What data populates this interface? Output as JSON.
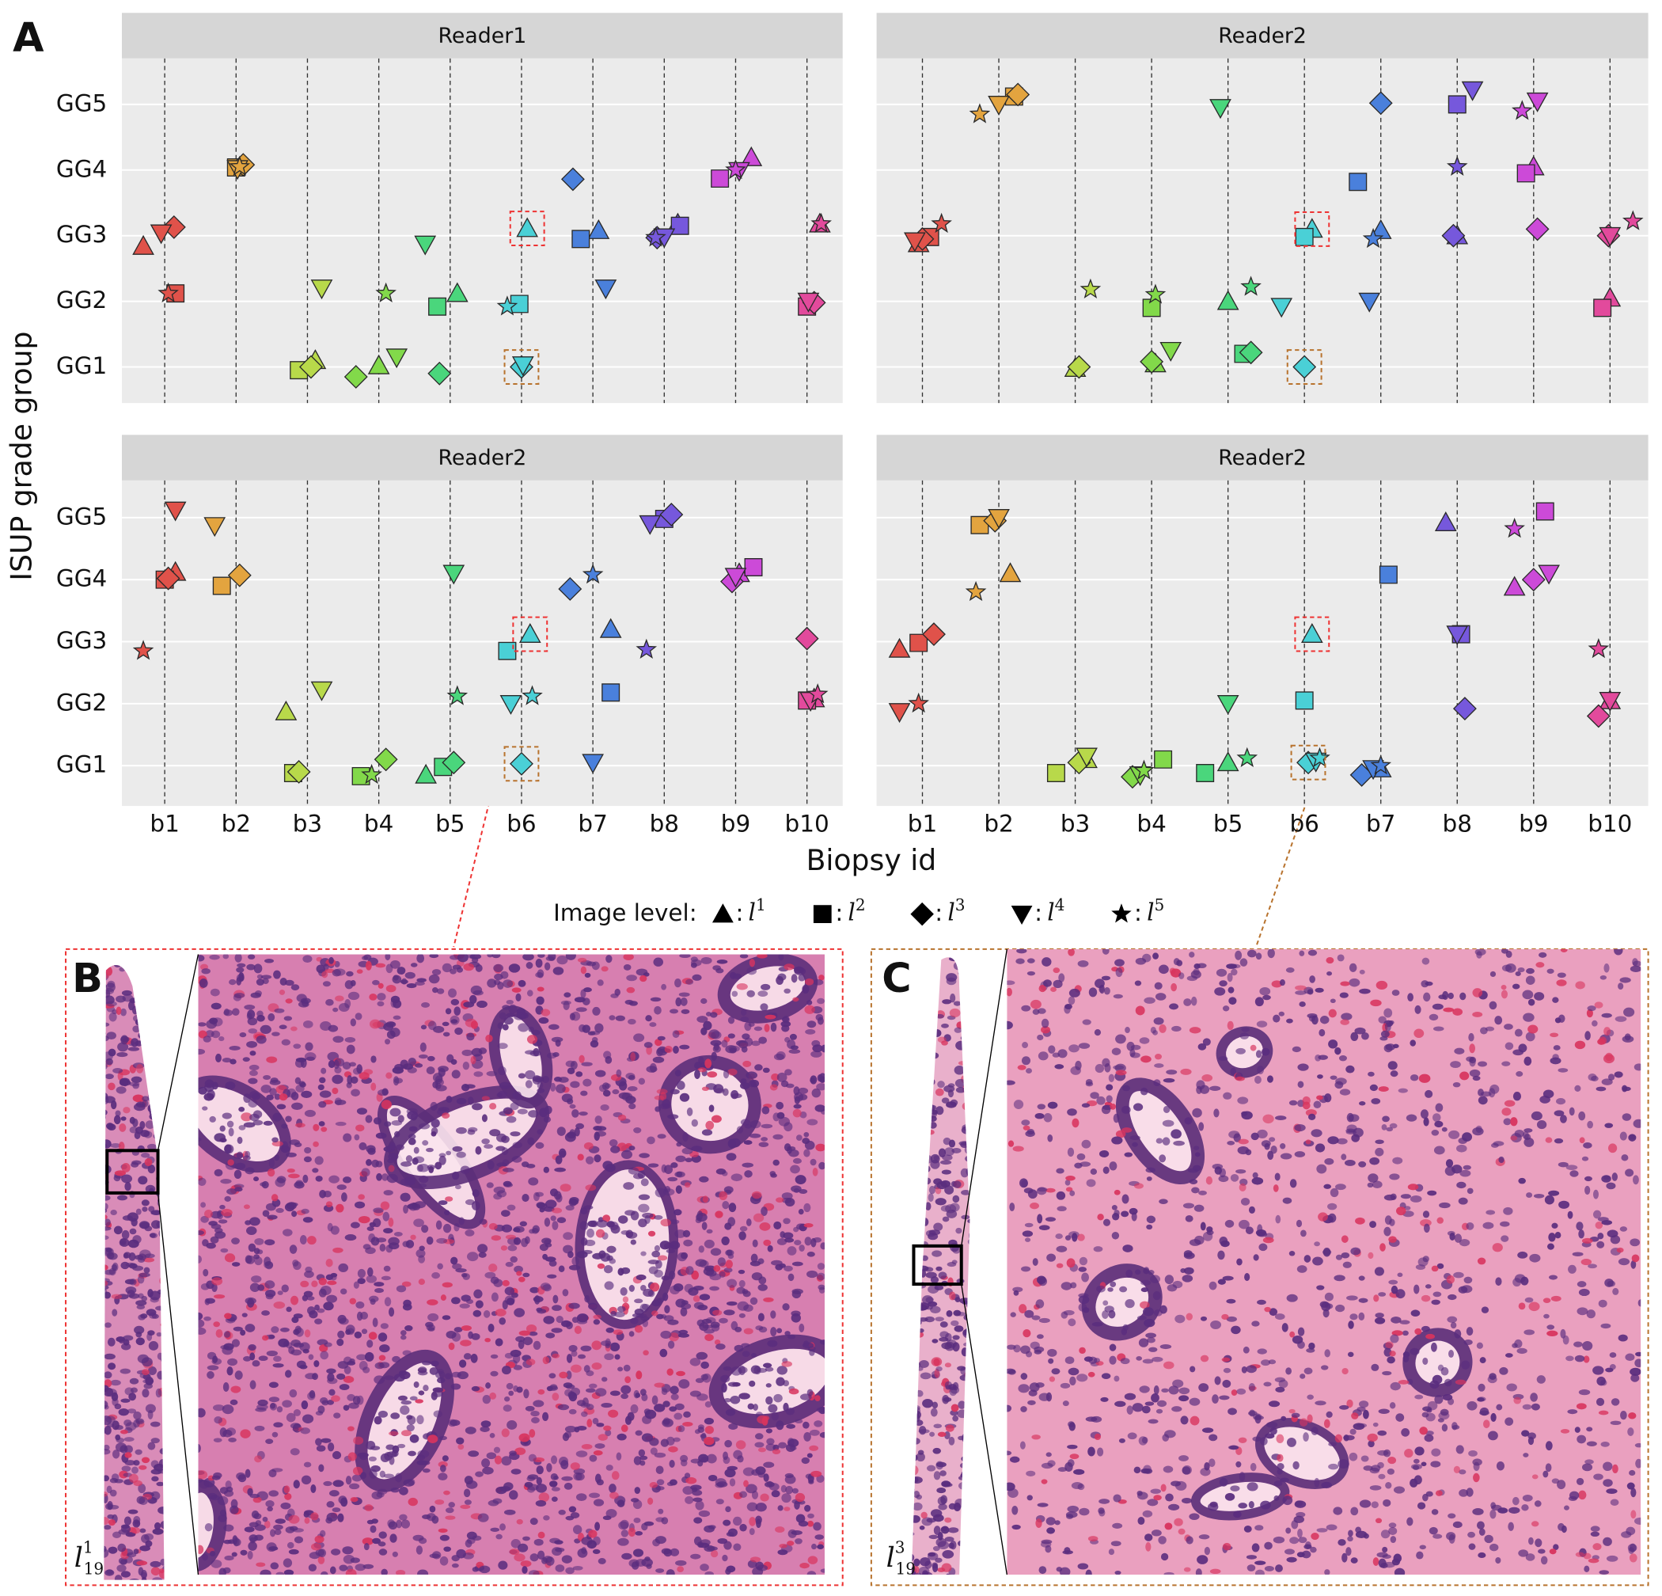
{
  "panel_labels": [
    "A",
    "B",
    "C"
  ],
  "y_axis_title": "ISUP grade group",
  "x_axis_title": "Biopsy id",
  "point_colors": [
    "#e0524a",
    "#e3a43f",
    "#b8d94a",
    "#82d94a",
    "#4ad67c",
    "#4ad0d6",
    "#4a80dc",
    "#7658dc",
    "#cc4ad8",
    "#e24a9c"
  ],
  "legend": {
    "title": "Image level:",
    "items": [
      {
        "marker": "triangle",
        "base": "l",
        "sup": "1"
      },
      {
        "marker": "square",
        "base": "l",
        "sup": "2"
      },
      {
        "marker": "diamond",
        "base": "l",
        "sup": "3"
      },
      {
        "marker": "triangle-down",
        "base": "l",
        "sup": "4"
      },
      {
        "marker": "star",
        "base": "l",
        "sup": "5"
      }
    ]
  },
  "image_labels": [
    {
      "base": "l",
      "sub": "19",
      "sup": "1"
    },
    {
      "base": "l",
      "sub": "19",
      "sup": "3"
    }
  ],
  "chart_data": [
    {
      "type": "scatter",
      "title": "Reader1",
      "xlim": [
        0.4,
        10.5
      ],
      "ylim": [
        0.45,
        5.7
      ],
      "xticks": [
        1,
        2,
        3,
        4,
        5,
        6,
        7,
        8,
        9,
        10
      ],
      "yticks": [
        {
          "value": 1,
          "label": "GG1"
        },
        {
          "value": 2,
          "label": "GG2"
        },
        {
          "value": 3,
          "label": "GG3"
        },
        {
          "value": 4,
          "label": "GG4"
        },
        {
          "value": 5,
          "label": "GG5"
        }
      ],
      "series": [
        {
          "marker": "triangle",
          "x": [
            0.7,
            3.11,
            4.0,
            5.1,
            6.08,
            7.08,
            8.19,
            9.22,
            10.18
          ],
          "values": [
            2.84,
            1.1,
            1.02,
            2.12,
            3.11,
            3.08,
            3.18,
            4.19,
            3.18
          ]
        },
        {
          "marker": "square",
          "x": [
            1.15,
            2.0,
            2.88,
            4.82,
            5.97,
            6.83,
            8.22,
            8.78,
            10.0
          ],
          "values": [
            2.12,
            4.04,
            0.95,
            1.92,
            1.96,
            2.95,
            3.15,
            3.87,
            1.92
          ]
        },
        {
          "marker": "diamond",
          "x": [
            1.13,
            2.1,
            3.05,
            3.68,
            4.85,
            6.0,
            6.72,
            7.9,
            10.1
          ],
          "values": [
            3.13,
            4.08,
            1.0,
            0.85,
            0.9,
            1.0,
            3.86,
            2.97,
            1.98
          ]
        },
        {
          "marker": "triangle-down",
          "x": [
            0.95,
            2.02,
            3.2,
            4.25,
            4.65,
            6.02,
            7.18,
            8.0,
            9.05,
            10.02
          ],
          "values": [
            3.04,
            4.02,
            2.2,
            1.15,
            2.87,
            1.03,
            2.2,
            2.98,
            3.99,
            2.0
          ]
        },
        {
          "marker": "star",
          "x": [
            1.05,
            2.05,
            4.1,
            5.8,
            7.88,
            9.0,
            10.2
          ],
          "values": [
            2.12,
            4.05,
            2.12,
            1.92,
            2.97,
            4.0,
            3.18
          ]
        }
      ]
    },
    {
      "type": "scatter",
      "title": "Reader2",
      "xlim": [
        0.4,
        10.5
      ],
      "ylim": [
        0.45,
        5.7
      ],
      "xticks": [
        1,
        2,
        3,
        4,
        5,
        6,
        7,
        8,
        9,
        10
      ],
      "yticks": [
        1,
        2,
        3,
        4,
        5
      ],
      "series": [
        {
          "marker": "triangle",
          "x": [
            0.95,
            3.0,
            4.05,
            5.0,
            6.1,
            7.0,
            8.0,
            9.0,
            10.0
          ],
          "values": [
            2.88,
            0.98,
            1.05,
            2.0,
            3.1,
            3.08,
            3.0,
            4.05,
            2.05
          ]
        },
        {
          "marker": "square",
          "x": [
            1.1,
            2.2,
            4.0,
            5.2,
            6.0,
            6.7,
            8.0,
            8.9,
            9.9
          ],
          "values": [
            2.98,
            5.12,
            1.9,
            1.2,
            2.98,
            3.82,
            5.0,
            3.95,
            1.9
          ]
        },
        {
          "marker": "diamond",
          "x": [
            1.0,
            2.25,
            3.05,
            4.0,
            5.3,
            6.0,
            7.0,
            7.95,
            9.05,
            9.98
          ],
          "values": [
            2.95,
            5.15,
            1.0,
            1.08,
            1.22,
            1.0,
            5.02,
            3.0,
            3.1,
            3.0
          ]
        },
        {
          "marker": "triangle-down",
          "x": [
            0.9,
            2.0,
            4.25,
            4.9,
            5.7,
            6.85,
            8.2,
            9.05,
            10.0
          ],
          "values": [
            2.92,
            5.0,
            1.25,
            4.95,
            1.92,
            2.0,
            5.22,
            5.05,
            3.0
          ]
        },
        {
          "marker": "star",
          "x": [
            1.25,
            1.75,
            3.2,
            4.05,
            5.3,
            6.9,
            8.0,
            8.85,
            10.3
          ],
          "values": [
            3.18,
            4.85,
            2.18,
            2.1,
            2.22,
            2.95,
            4.05,
            4.9,
            3.22
          ]
        }
      ]
    },
    {
      "type": "scatter",
      "title": "Reader2",
      "xlim": [
        0.4,
        10.5
      ],
      "ylim": [
        0.35,
        5.6
      ],
      "xticks": [
        {
          "value": 1,
          "label": "b1"
        },
        {
          "value": 2,
          "label": "b2"
        },
        {
          "value": 3,
          "label": "b3"
        },
        {
          "value": 4,
          "label": "b4"
        },
        {
          "value": 5,
          "label": "b5"
        },
        {
          "value": 6,
          "label": "b6"
        },
        {
          "value": 7,
          "label": "b7"
        },
        {
          "value": 8,
          "label": "b8"
        },
        {
          "value": 9,
          "label": "b9"
        },
        {
          "value": 10,
          "label": "b10"
        }
      ],
      "yticks": [
        {
          "value": 1,
          "label": "GG1"
        },
        {
          "value": 2,
          "label": "GG2"
        },
        {
          "value": 3,
          "label": "GG3"
        },
        {
          "value": 4,
          "label": "GG4"
        },
        {
          "value": 5,
          "label": "GG5"
        }
      ],
      "series": [
        {
          "marker": "triangle",
          "x": [
            1.15,
            2.7,
            4.66,
            6.12,
            7.25,
            9.05,
            10.1
          ],
          "values": [
            4.12,
            1.87,
            0.85,
            3.12,
            3.2,
            4.1,
            2.08
          ]
        },
        {
          "marker": "square",
          "x": [
            1.0,
            1.8,
            2.8,
            3.75,
            4.9,
            5.8,
            7.25,
            8.0,
            9.25,
            10.0
          ],
          "values": [
            4.0,
            3.9,
            0.88,
            0.83,
            0.98,
            2.85,
            2.18,
            4.98,
            4.2,
            2.05
          ]
        },
        {
          "marker": "diamond",
          "x": [
            1.05,
            2.05,
            2.88,
            4.1,
            5.05,
            6.0,
            6.68,
            8.1,
            8.95,
            10.0
          ],
          "values": [
            4.02,
            4.07,
            0.9,
            1.1,
            1.05,
            1.03,
            3.85,
            5.05,
            3.97,
            3.05
          ]
        },
        {
          "marker": "triangle-down",
          "x": [
            1.15,
            1.7,
            3.2,
            5.05,
            5.85,
            7.0,
            7.8,
            9.0,
            10.05
          ],
          "values": [
            5.12,
            4.87,
            2.22,
            4.1,
            2.0,
            1.05,
            4.9,
            4.05,
            2.05
          ]
        },
        {
          "marker": "star",
          "x": [
            0.7,
            3.9,
            5.1,
            6.15,
            7.0,
            7.75,
            10.15
          ],
          "values": [
            2.85,
            0.85,
            2.12,
            2.12,
            4.08,
            2.87,
            2.15
          ]
        }
      ]
    },
    {
      "type": "scatter",
      "title": "Reader2",
      "xlim": [
        0.4,
        10.5
      ],
      "ylim": [
        0.35,
        5.6
      ],
      "xticks": [
        {
          "value": 1,
          "label": "b1"
        },
        {
          "value": 2,
          "label": "b2"
        },
        {
          "value": 3,
          "label": "b3"
        },
        {
          "value": 4,
          "label": "b4"
        },
        {
          "value": 5,
          "label": "b5"
        },
        {
          "value": 6,
          "label": "b6"
        },
        {
          "value": 7,
          "label": "b7"
        },
        {
          "value": 8,
          "label": "b8"
        },
        {
          "value": 9,
          "label": "b9"
        },
        {
          "value": 10,
          "label": "b10"
        }
      ],
      "yticks": [
        1,
        2,
        3,
        4,
        5
      ],
      "series": [
        {
          "marker": "triangle",
          "x": [
            0.7,
            2.15,
            3.15,
            5.0,
            6.1,
            7.0,
            7.85,
            8.75,
            10.0
          ],
          "values": [
            2.88,
            4.1,
            1.1,
            1.05,
            3.12,
            0.95,
            4.92,
            3.88,
            2.05
          ]
        },
        {
          "marker": "square",
          "x": [
            0.95,
            1.75,
            2.75,
            4.15,
            4.7,
            6.0,
            7.1,
            8.05,
            9.15
          ],
          "values": [
            2.98,
            4.88,
            0.88,
            1.1,
            0.88,
            2.05,
            4.08,
            3.12,
            5.1
          ]
        },
        {
          "marker": "diamond",
          "x": [
            1.15,
            1.95,
            3.05,
            3.75,
            6.05,
            6.75,
            8.1,
            9.0,
            9.85
          ],
          "values": [
            3.12,
            4.95,
            1.05,
            0.82,
            1.05,
            0.85,
            1.92,
            4.0,
            1.8
          ]
        },
        {
          "marker": "triangle-down",
          "x": [
            0.7,
            2.0,
            3.15,
            3.85,
            5.0,
            6.15,
            6.9,
            8.0,
            9.2,
            10.0
          ],
          "values": [
            1.87,
            5.0,
            1.15,
            0.85,
            2.0,
            1.07,
            0.95,
            3.12,
            4.1,
            2.05
          ]
        },
        {
          "marker": "star",
          "x": [
            0.95,
            1.7,
            3.9,
            5.25,
            6.2,
            7.0,
            8.75,
            9.85
          ],
          "values": [
            2.0,
            3.8,
            0.92,
            1.12,
            1.12,
            1.0,
            4.82,
            2.88
          ]
        }
      ]
    }
  ]
}
